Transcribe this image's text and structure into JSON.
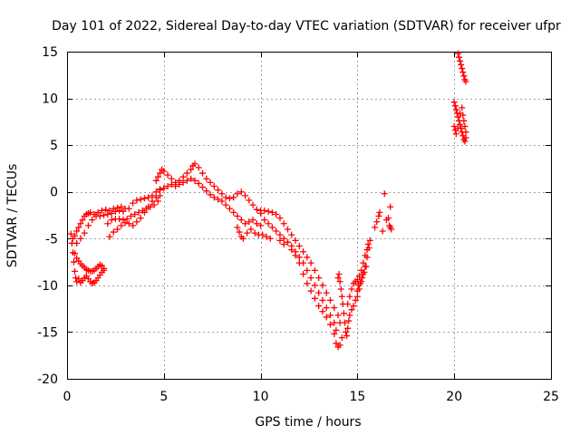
{
  "chart_data": {
    "type": "scatter",
    "title": "Day 101 of 2022, Sidereal Day-to-day VTEC variation (SDTVAR) for receiver ufpr",
    "xlabel": "GPS time / hours",
    "ylabel": "SDTVAR / TECUs",
    "xlim": [
      0,
      25
    ],
    "ylim": [
      -20,
      15
    ],
    "xticks": [
      0,
      5,
      10,
      15,
      20,
      25
    ],
    "yticks": [
      -20,
      -15,
      -10,
      -5,
      0,
      5,
      10,
      15
    ],
    "grid": true,
    "marker": "+",
    "color": "#ff0000",
    "series": [
      {
        "name": "SDTVAR",
        "points": [
          [
            0.2,
            -4.5
          ],
          [
            0.25,
            -5.5
          ],
          [
            0.3,
            -6.5
          ],
          [
            0.35,
            -7.5
          ],
          [
            0.4,
            -8.5
          ],
          [
            0.45,
            -9.2
          ],
          [
            0.5,
            -9.6
          ],
          [
            0.6,
            -9.3
          ],
          [
            0.7,
            -9.7
          ],
          [
            0.8,
            -9.5
          ],
          [
            0.9,
            -9.2
          ],
          [
            1.0,
            -9.0
          ],
          [
            1.1,
            -9.3
          ],
          [
            1.2,
            -9.6
          ],
          [
            1.3,
            -9.8
          ],
          [
            1.4,
            -9.7
          ],
          [
            1.5,
            -9.5
          ],
          [
            1.6,
            -9.2
          ],
          [
            1.7,
            -8.9
          ],
          [
            1.8,
            -8.6
          ],
          [
            1.9,
            -8.4
          ],
          [
            0.4,
            -6.6
          ],
          [
            0.5,
            -7.1
          ],
          [
            0.6,
            -7.4
          ],
          [
            0.7,
            -7.7
          ],
          [
            0.8,
            -7.9
          ],
          [
            0.9,
            -8.1
          ],
          [
            1.0,
            -8.3
          ],
          [
            1.1,
            -8.4
          ],
          [
            1.2,
            -8.5
          ],
          [
            1.3,
            -8.5
          ],
          [
            1.4,
            -8.4
          ],
          [
            1.5,
            -8.2
          ],
          [
            1.6,
            -8.0
          ],
          [
            1.7,
            -7.8
          ],
          [
            1.8,
            -7.9
          ],
          [
            1.9,
            -8.2
          ],
          [
            0.3,
            -5.0
          ],
          [
            0.4,
            -4.7
          ],
          [
            0.5,
            -4.2
          ],
          [
            0.6,
            -3.8
          ],
          [
            0.7,
            -3.4
          ],
          [
            0.8,
            -3.0
          ],
          [
            0.9,
            -2.6
          ],
          [
            1.0,
            -2.4
          ],
          [
            1.1,
            -2.3
          ],
          [
            1.2,
            -2.2
          ],
          [
            1.4,
            -2.4
          ],
          [
            1.6,
            -2.2
          ],
          [
            1.8,
            -2.0
          ],
          [
            2.0,
            -1.9
          ],
          [
            2.2,
            -2.0
          ],
          [
            2.4,
            -1.8
          ],
          [
            2.6,
            -1.7
          ],
          [
            2.8,
            -1.6
          ],
          [
            3.0,
            -1.8
          ],
          [
            0.5,
            -5.5
          ],
          [
            0.7,
            -5.0
          ],
          [
            0.9,
            -4.4
          ],
          [
            1.1,
            -3.6
          ],
          [
            1.3,
            -3.0
          ],
          [
            1.5,
            -2.6
          ],
          [
            1.7,
            -2.6
          ],
          [
            1.9,
            -2.5
          ],
          [
            2.1,
            -2.4
          ],
          [
            2.3,
            -2.3
          ],
          [
            2.5,
            -2.1
          ],
          [
            2.7,
            -2.0
          ],
          [
            2.9,
            -2.1
          ],
          [
            2.1,
            -3.4
          ],
          [
            2.3,
            -3.0
          ],
          [
            2.5,
            -2.9
          ],
          [
            2.7,
            -2.9
          ],
          [
            2.9,
            -3.0
          ],
          [
            3.1,
            -2.9
          ],
          [
            3.3,
            -2.6
          ],
          [
            3.5,
            -2.4
          ],
          [
            3.7,
            -2.2
          ],
          [
            3.9,
            -2.0
          ],
          [
            4.1,
            -1.8
          ],
          [
            4.3,
            -1.6
          ],
          [
            4.5,
            -1.4
          ],
          [
            4.7,
            -1.0
          ],
          [
            2.2,
            -4.8
          ],
          [
            2.4,
            -4.3
          ],
          [
            2.6,
            -4.0
          ],
          [
            2.8,
            -3.6
          ],
          [
            3.0,
            -3.3
          ],
          [
            3.2,
            -3.4
          ],
          [
            3.4,
            -3.6
          ],
          [
            3.6,
            -3.2
          ],
          [
            3.8,
            -2.8
          ],
          [
            4.0,
            -2.2
          ],
          [
            4.2,
            -1.6
          ],
          [
            4.4,
            -1.0
          ],
          [
            4.6,
            -0.6
          ],
          [
            4.8,
            -0.4
          ],
          [
            3.2,
            -1.8
          ],
          [
            3.4,
            -1.2
          ],
          [
            3.6,
            -0.9
          ],
          [
            3.8,
            -0.8
          ],
          [
            4.0,
            -0.7
          ],
          [
            4.2,
            -0.6
          ],
          [
            4.4,
            -0.4
          ],
          [
            4.6,
            0.0
          ],
          [
            4.8,
            0.3
          ],
          [
            5.0,
            0.4
          ],
          [
            4.6,
            1.2
          ],
          [
            4.7,
            1.6
          ],
          [
            4.8,
            2.0
          ],
          [
            4.9,
            2.4
          ],
          [
            5.0,
            2.2
          ],
          [
            5.2,
            1.8
          ],
          [
            5.4,
            1.4
          ],
          [
            5.6,
            1.0
          ],
          [
            5.8,
            1.2
          ],
          [
            6.0,
            1.6
          ],
          [
            6.2,
            2.0
          ],
          [
            6.4,
            2.4
          ],
          [
            6.5,
            2.8
          ],
          [
            6.6,
            3.0
          ],
          [
            6.8,
            2.6
          ],
          [
            7.0,
            2.0
          ],
          [
            7.2,
            1.4
          ],
          [
            7.4,
            1.0
          ],
          [
            7.6,
            0.6
          ],
          [
            7.8,
            0.2
          ],
          [
            8.0,
            -0.2
          ],
          [
            8.2,
            -0.6
          ],
          [
            8.4,
            -0.7
          ],
          [
            8.6,
            -0.6
          ],
          [
            8.8,
            -0.2
          ],
          [
            9.0,
            0.0
          ],
          [
            9.2,
            -0.4
          ],
          [
            9.4,
            -0.9
          ],
          [
            9.6,
            -1.4
          ],
          [
            9.8,
            -1.9
          ],
          [
            10.0,
            -2.3
          ],
          [
            4.8,
            0.2
          ],
          [
            5.0,
            0.4
          ],
          [
            5.2,
            0.6
          ],
          [
            5.4,
            0.8
          ],
          [
            5.6,
            0.6
          ],
          [
            5.8,
            0.8
          ],
          [
            6.0,
            1.0
          ],
          [
            6.2,
            1.2
          ],
          [
            6.4,
            1.4
          ],
          [
            6.6,
            1.2
          ],
          [
            6.8,
            0.9
          ],
          [
            7.0,
            0.5
          ],
          [
            7.2,
            0.1
          ],
          [
            7.4,
            -0.3
          ],
          [
            7.6,
            -0.6
          ],
          [
            7.8,
            -0.8
          ],
          [
            8.0,
            -1.0
          ],
          [
            8.2,
            -1.4
          ],
          [
            8.4,
            -1.8
          ],
          [
            8.6,
            -2.2
          ],
          [
            8.8,
            -2.6
          ],
          [
            9.0,
            -3.0
          ],
          [
            9.2,
            -3.4
          ],
          [
            9.4,
            -3.2
          ],
          [
            9.6,
            -3.0
          ],
          [
            9.8,
            -3.4
          ],
          [
            10.0,
            -3.6
          ],
          [
            8.8,
            -3.8
          ],
          [
            8.9,
            -4.3
          ],
          [
            9.0,
            -4.8
          ],
          [
            9.1,
            -5.0
          ],
          [
            9.3,
            -4.4
          ],
          [
            9.5,
            -4.0
          ],
          [
            9.7,
            -4.4
          ],
          [
            9.9,
            -4.6
          ],
          [
            10.1,
            -4.6
          ],
          [
            10.3,
            -4.8
          ],
          [
            10.5,
            -5.0
          ],
          [
            10.0,
            -2.0
          ],
          [
            10.2,
            -2.0
          ],
          [
            10.4,
            -2.1
          ],
          [
            10.6,
            -2.2
          ],
          [
            10.8,
            -2.4
          ],
          [
            11.0,
            -2.8
          ],
          [
            11.2,
            -3.4
          ],
          [
            11.4,
            -4.0
          ],
          [
            11.6,
            -4.6
          ],
          [
            11.8,
            -5.2
          ],
          [
            12.0,
            -5.8
          ],
          [
            12.2,
            -6.4
          ],
          [
            12.4,
            -7.0
          ],
          [
            12.6,
            -7.6
          ],
          [
            12.8,
            -8.4
          ],
          [
            13.0,
            -9.2
          ],
          [
            13.2,
            -10.0
          ],
          [
            13.4,
            -10.8
          ],
          [
            13.6,
            -11.6
          ],
          [
            13.8,
            -12.4
          ],
          [
            14.0,
            -13.2
          ],
          [
            14.1,
            -14.0
          ],
          [
            10.2,
            -3.0
          ],
          [
            10.4,
            -3.4
          ],
          [
            10.6,
            -3.8
          ],
          [
            10.8,
            -4.2
          ],
          [
            11.0,
            -4.6
          ],
          [
            11.2,
            -5.0
          ],
          [
            11.4,
            -5.4
          ],
          [
            11.6,
            -5.8
          ],
          [
            11.8,
            -6.4
          ],
          [
            12.0,
            -7.0
          ],
          [
            12.2,
            -7.6
          ],
          [
            12.4,
            -8.4
          ],
          [
            12.6,
            -9.2
          ],
          [
            12.8,
            -10.0
          ],
          [
            13.0,
            -10.8
          ],
          [
            13.2,
            -11.6
          ],
          [
            13.4,
            -12.4
          ],
          [
            13.6,
            -13.2
          ],
          [
            13.8,
            -14.0
          ],
          [
            13.9,
            -14.8
          ],
          [
            11.0,
            -5.2
          ],
          [
            11.2,
            -5.6
          ],
          [
            11.4,
            -5.4
          ],
          [
            11.6,
            -6.2
          ],
          [
            11.8,
            -6.8
          ],
          [
            12.0,
            -7.6
          ],
          [
            12.2,
            -8.8
          ],
          [
            12.4,
            -9.8
          ],
          [
            12.6,
            -10.6
          ],
          [
            12.8,
            -11.4
          ],
          [
            13.0,
            -12.2
          ],
          [
            13.2,
            -12.8
          ],
          [
            13.4,
            -13.4
          ],
          [
            13.6,
            -14.2
          ],
          [
            13.8,
            -15.2
          ],
          [
            13.9,
            -16.2
          ],
          [
            14.0,
            -16.6
          ],
          [
            14.1,
            -16.4
          ],
          [
            14.2,
            -15.6
          ],
          [
            14.0,
            -9.2
          ],
          [
            14.05,
            -8.8
          ],
          [
            14.1,
            -9.6
          ],
          [
            14.15,
            -10.4
          ],
          [
            14.2,
            -11.2
          ],
          [
            14.25,
            -12.0
          ],
          [
            14.3,
            -13.0
          ],
          [
            14.35,
            -14.0
          ],
          [
            14.4,
            -15.0
          ],
          [
            14.45,
            -15.4
          ],
          [
            14.5,
            -14.6
          ],
          [
            14.55,
            -13.8
          ],
          [
            14.6,
            -13.2
          ],
          [
            14.7,
            -12.6
          ],
          [
            14.8,
            -12.2
          ],
          [
            14.9,
            -11.6
          ],
          [
            15.0,
            -11.2
          ],
          [
            15.1,
            -10.4
          ],
          [
            15.2,
            -9.6
          ],
          [
            15.3,
            -8.8
          ],
          [
            15.4,
            -8.0
          ],
          [
            15.5,
            -7.0
          ],
          [
            15.6,
            -6.0
          ],
          [
            15.65,
            -5.2
          ],
          [
            14.5,
            -12.0
          ],
          [
            14.6,
            -11.2
          ],
          [
            14.7,
            -10.4
          ],
          [
            14.8,
            -9.8
          ],
          [
            14.9,
            -9.6
          ],
          [
            15.0,
            -9.4
          ],
          [
            15.1,
            -9.0
          ],
          [
            15.2,
            -8.4
          ],
          [
            15.3,
            -7.6
          ],
          [
            15.4,
            -6.8
          ],
          [
            15.5,
            -6.2
          ],
          [
            15.55,
            -5.6
          ],
          [
            15.0,
            -10.6
          ],
          [
            15.05,
            -10.0
          ],
          [
            15.15,
            -9.8
          ],
          [
            15.25,
            -9.2
          ],
          [
            15.35,
            -8.6
          ],
          [
            15.45,
            -8.0
          ],
          [
            15.9,
            -3.8
          ],
          [
            16.0,
            -3.2
          ],
          [
            16.1,
            -2.6
          ],
          [
            16.15,
            -2.2
          ],
          [
            16.3,
            -4.2
          ],
          [
            16.4,
            -0.2
          ],
          [
            16.5,
            -3.0
          ],
          [
            16.6,
            -2.8
          ],
          [
            16.65,
            -3.6
          ],
          [
            16.7,
            -3.8
          ],
          [
            16.75,
            -4.0
          ],
          [
            16.7,
            -1.6
          ],
          [
            20.2,
            14.8
          ],
          [
            20.25,
            14.4
          ],
          [
            20.3,
            14.0
          ],
          [
            20.35,
            13.6
          ],
          [
            20.4,
            13.2
          ],
          [
            20.45,
            12.8
          ],
          [
            20.5,
            12.4
          ],
          [
            20.55,
            12.0
          ],
          [
            20.6,
            11.8
          ],
          [
            20.0,
            9.6
          ],
          [
            20.05,
            9.2
          ],
          [
            20.1,
            8.8
          ],
          [
            20.15,
            8.4
          ],
          [
            20.2,
            8.0
          ],
          [
            20.25,
            7.6
          ],
          [
            20.3,
            7.2
          ],
          [
            20.35,
            6.8
          ],
          [
            20.4,
            6.4
          ],
          [
            20.45,
            6.0
          ],
          [
            20.5,
            5.6
          ],
          [
            20.55,
            5.4
          ],
          [
            20.6,
            5.8
          ],
          [
            20.0,
            7.0
          ],
          [
            20.05,
            6.6
          ],
          [
            20.1,
            6.2
          ],
          [
            20.2,
            6.8
          ],
          [
            20.3,
            8.4
          ],
          [
            20.4,
            9.0
          ],
          [
            20.45,
            8.2
          ],
          [
            20.5,
            7.6
          ],
          [
            20.55,
            7.0
          ],
          [
            20.6,
            6.4
          ]
        ]
      }
    ]
  }
}
